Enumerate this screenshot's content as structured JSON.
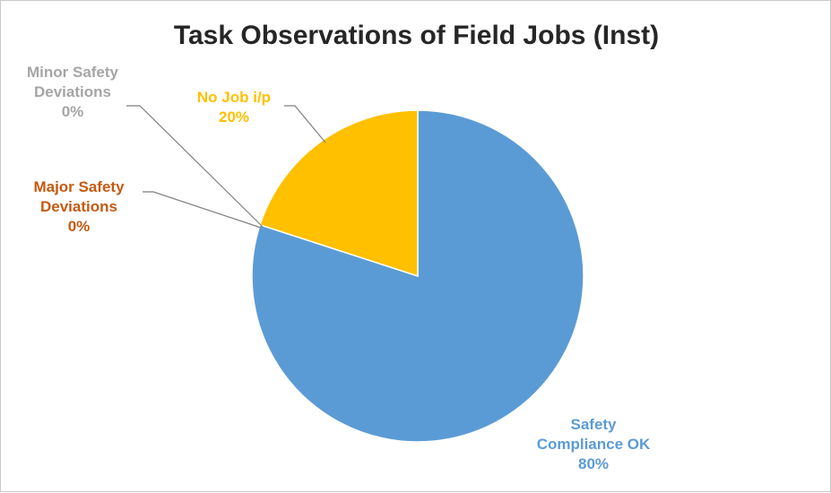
{
  "chart_data": {
    "type": "pie",
    "title": "Task Observations of Field Jobs (Inst)",
    "start_angle_deg": 0,
    "direction": "clockwise",
    "slices": [
      {
        "label": [
          "Safety",
          "Compliance OK"
        ],
        "percent_label": "80%",
        "value": 80,
        "color": "#5b9bd5"
      },
      {
        "label": [
          "Minor Safety",
          "Deviations"
        ],
        "percent_label": "0%",
        "value": 0,
        "color": "#a5a5a5"
      },
      {
        "label": [
          "Major Safety",
          "Deviations"
        ],
        "percent_label": "0%",
        "value": 0,
        "color": "#c55a11"
      },
      {
        "label": [
          "No Job i/p"
        ],
        "percent_label": "20%",
        "value": 20,
        "color": "#ffc000"
      }
    ],
    "legend": "none"
  }
}
